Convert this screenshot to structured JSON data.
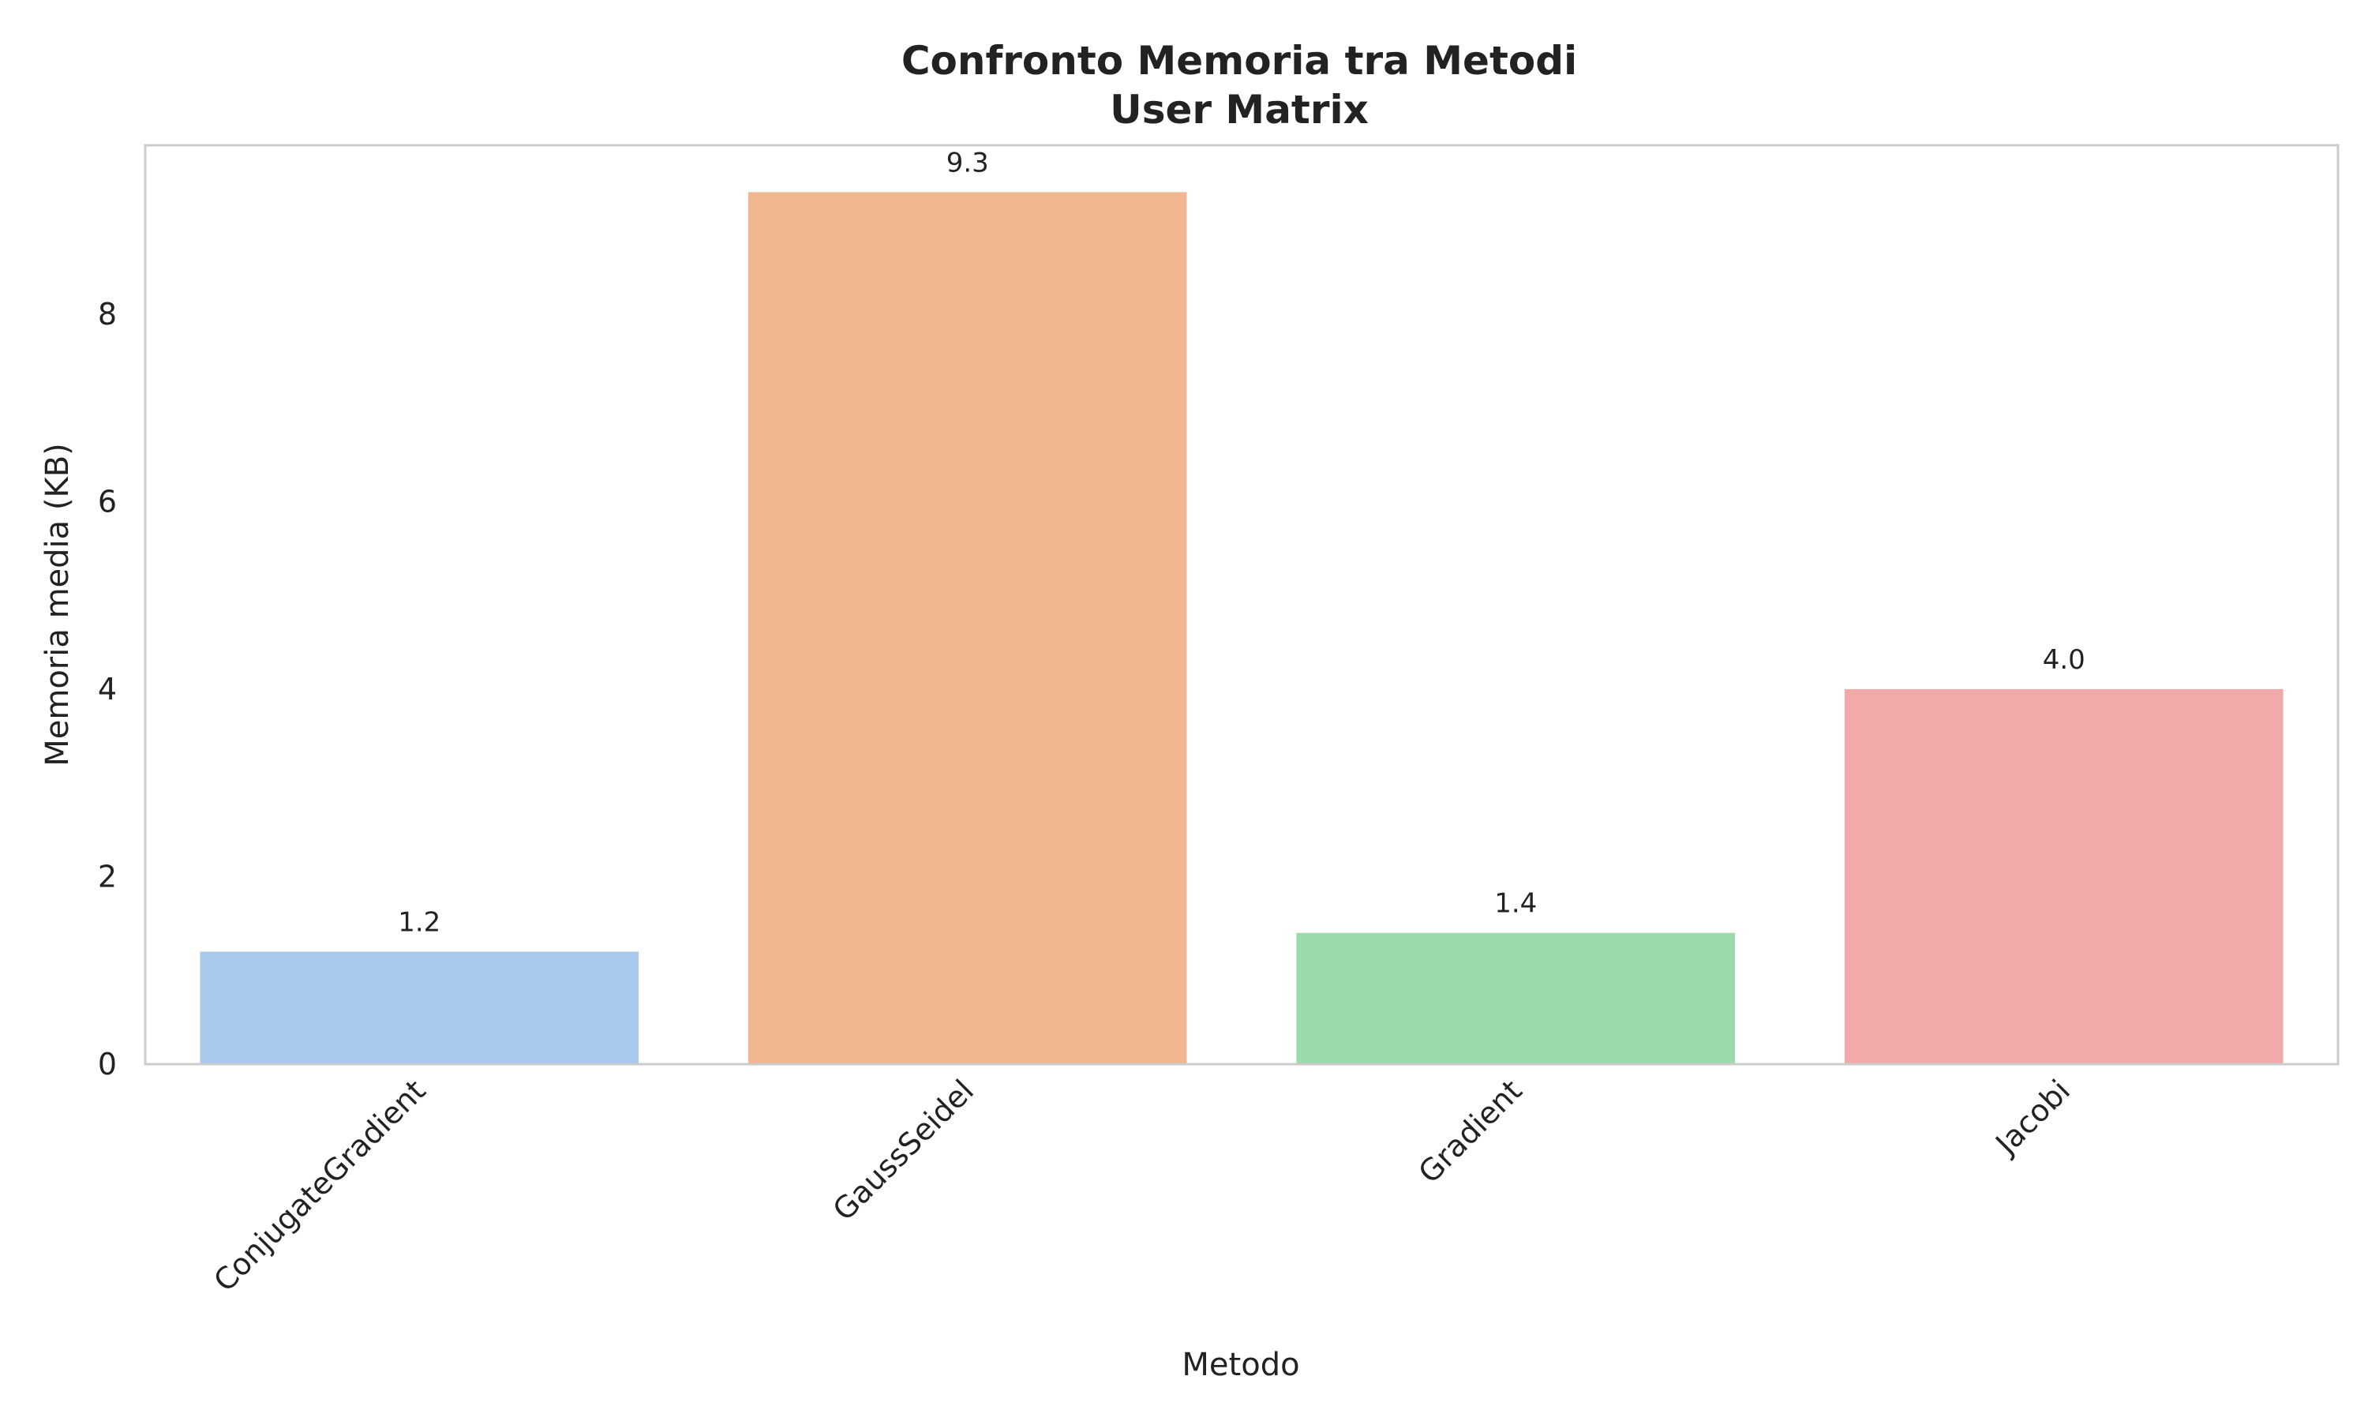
{
  "chart_data": {
    "type": "bar",
    "title": "Confronto Memoria tra Metodi",
    "subtitle": "User Matrix",
    "xlabel": "Metodo",
    "ylabel": "Memoria media (KB)",
    "categories": [
      "ConjugateGradient",
      "GaussSeidel",
      "Gradient",
      "Jacobi"
    ],
    "values": [
      1.2,
      9.3,
      1.4,
      4.0
    ],
    "value_labels": [
      "1.2",
      "9.3",
      "1.4",
      "4.0"
    ],
    "colors": [
      "#a9c8ed",
      "#f0b791",
      "#9bdaaa",
      "#f1a9a9"
    ],
    "ylim": [
      0,
      9.8
    ],
    "yticks": [
      0,
      2,
      4,
      6,
      8
    ],
    "grid": false,
    "legend": "none"
  }
}
